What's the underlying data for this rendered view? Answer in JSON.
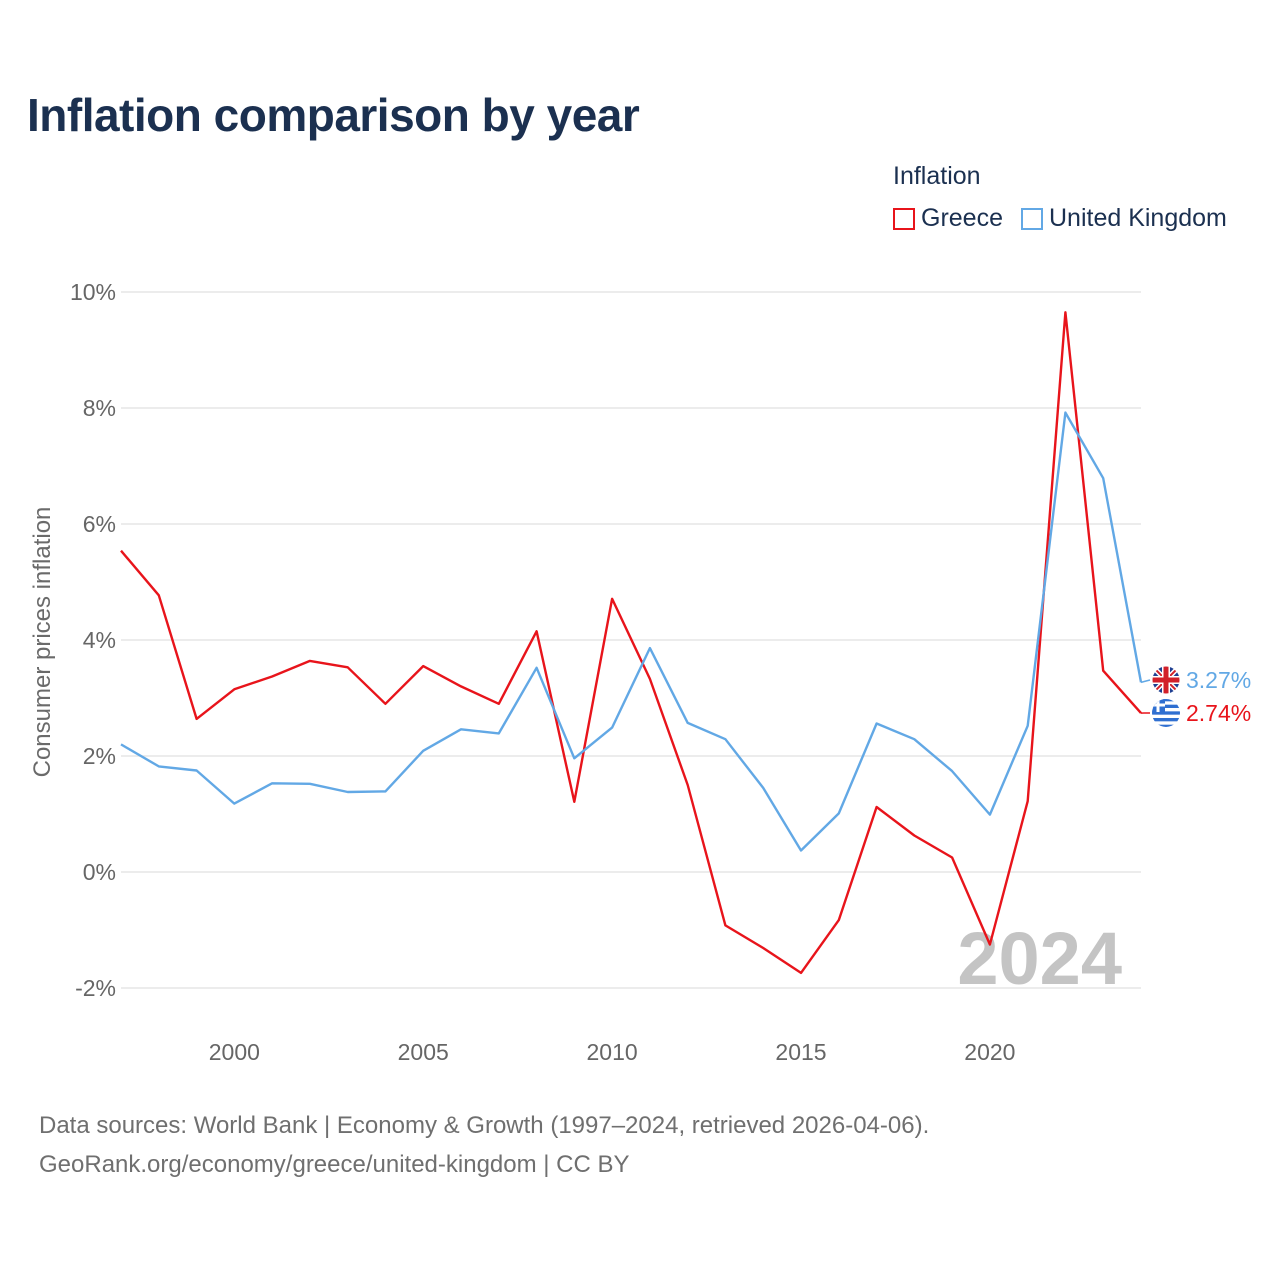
{
  "title": "Inflation comparison by year",
  "legend": {
    "title": "Inflation",
    "items": [
      {
        "label": "Greece",
        "color": "#e8141b"
      },
      {
        "label": "United Kingdom",
        "color": "#62a8e5"
      }
    ]
  },
  "chart_data": {
    "type": "line",
    "title": "Inflation comparison by year",
    "ylabel": "Consumer prices inflation",
    "xlabel": "",
    "x": [
      1997,
      1998,
      1999,
      2000,
      2001,
      2002,
      2003,
      2004,
      2005,
      2006,
      2007,
      2008,
      2009,
      2010,
      2011,
      2012,
      2013,
      2014,
      2015,
      2016,
      2017,
      2018,
      2019,
      2020,
      2021,
      2022,
      2023,
      2024
    ],
    "xlim": [
      1997,
      2024
    ],
    "ylim": [
      -2,
      10
    ],
    "yticks": [
      -2,
      0,
      2,
      4,
      6,
      8,
      10
    ],
    "ytick_labels": [
      "-2%",
      "0%",
      "2%",
      "4%",
      "6%",
      "8%",
      "10%"
    ],
    "xticks": [
      2000,
      2005,
      2010,
      2015,
      2020
    ],
    "xtick_labels": [
      "2000",
      "2005",
      "2010",
      "2015",
      "2020"
    ],
    "year_watermark": "2024",
    "series": [
      {
        "name": "Greece",
        "color": "#e8141b",
        "values": [
          5.54,
          4.77,
          2.64,
          3.15,
          3.37,
          3.64,
          3.53,
          2.9,
          3.55,
          3.2,
          2.9,
          4.15,
          1.21,
          4.71,
          3.33,
          1.5,
          -0.92,
          -1.31,
          -1.74,
          -0.83,
          1.12,
          0.63,
          0.25,
          -1.25,
          1.22,
          9.65,
          3.47,
          2.74
        ],
        "end_label": "2.74%"
      },
      {
        "name": "United Kingdom",
        "color": "#62a8e5",
        "values": [
          2.2,
          1.82,
          1.75,
          1.18,
          1.53,
          1.52,
          1.38,
          1.39,
          2.09,
          2.46,
          2.39,
          3.52,
          1.96,
          2.49,
          3.86,
          2.57,
          2.29,
          1.45,
          0.37,
          1.01,
          2.56,
          2.29,
          1.74,
          0.99,
          2.52,
          7.92,
          6.79,
          3.27
        ],
        "end_label": "3.27%"
      }
    ],
    "grid": true
  },
  "source": {
    "line1": "Data sources: World Bank | Economy & Growth (1997–2024, retrieved 2026-04-06).",
    "line2": "GeoRank.org/economy/greece/united-kingdom | CC BY"
  }
}
